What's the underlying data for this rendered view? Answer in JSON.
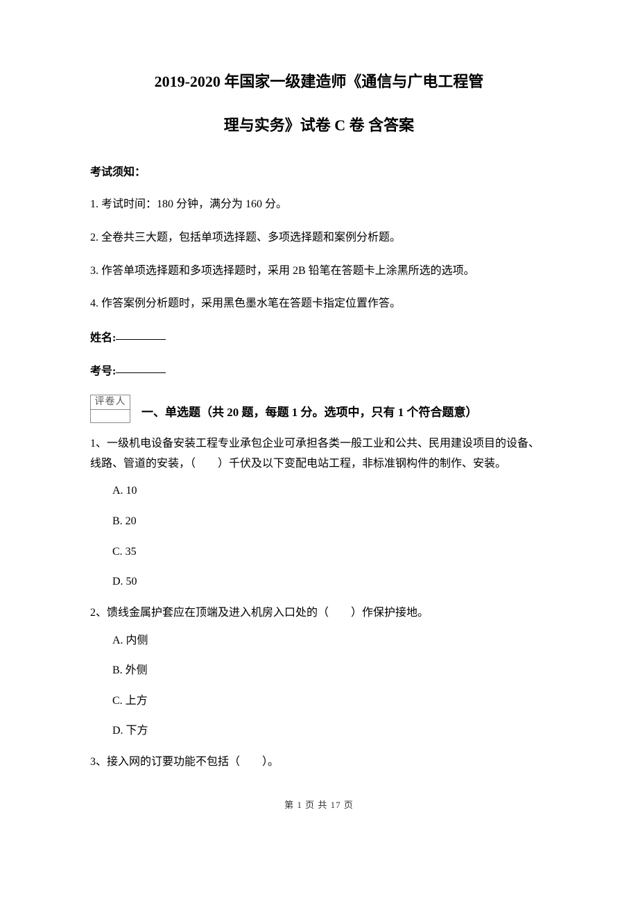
{
  "title_line_1": "2019-2020 年国家一级建造师《通信与广电工程管",
  "title_line_2": "理与实务》试卷 C 卷 含答案",
  "exam_notice_label": "考试须知：",
  "notices": [
    "1. 考试时间：180 分钟，满分为 160 分。",
    "2. 全卷共三大题，包括单项选择题、多项选择题和案例分析题。",
    "3. 作答单项选择题和多项选择题时，采用 2B 铅笔在答题卡上涂黑所选的选项。",
    "4. 作答案例分析题时，采用黑色墨水笔在答题卡指定位置作答。"
  ],
  "name_label": "姓名:",
  "exam_number_label": "考号:",
  "grader_label": "评卷人",
  "section1_heading": "一、单选题（共 20 题，每题 1 分。选项中，只有 1 个符合题意）",
  "questions": [
    {
      "stem": "1、一级机电设备安装工程专业承包企业可承担各类一般工业和公共、民用建设项目的设备、线路、管道的安装，（　　）千伏及以下变配电站工程，非标准钢构件的制作、安装。",
      "options": [
        "A.  10",
        "B.  20",
        "C.  35",
        "D.  50"
      ]
    },
    {
      "stem": "2、馈线金属护套应在顶端及进入机房入口处的（　　）作保护接地。",
      "options": [
        "A.  内侧",
        "B.  外侧",
        "C.  上方",
        "D.  下方"
      ]
    },
    {
      "stem": "3、接入网的订要功能不包括（　　）。",
      "options": []
    }
  ],
  "footer": "第 1 页 共 17 页"
}
